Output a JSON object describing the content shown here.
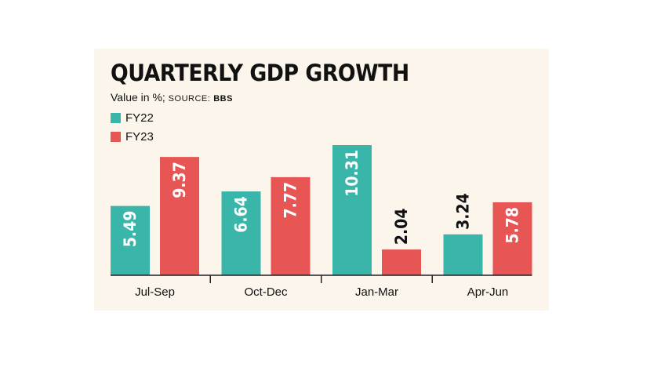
{
  "chart_data": {
    "type": "bar",
    "title": "QUARTERLY GDP GROWTH",
    "subtitle": {
      "unit": "Value in %;",
      "source_label": "SOURCE:",
      "source": "BBS"
    },
    "categories": [
      "Jul-Sep",
      "Oct-Dec",
      "Jan-Mar",
      "Apr-Jun"
    ],
    "series": [
      {
        "name": "FY22",
        "color": "#3ab5aa",
        "values": [
          5.49,
          6.64,
          10.31,
          3.24
        ]
      },
      {
        "name": "FY23",
        "color": "#e85555",
        "values": [
          9.37,
          7.77,
          2.04,
          5.78
        ]
      }
    ],
    "data_labels": true,
    "grid": false,
    "legend": "top-left",
    "background": "#fcf5ec"
  }
}
